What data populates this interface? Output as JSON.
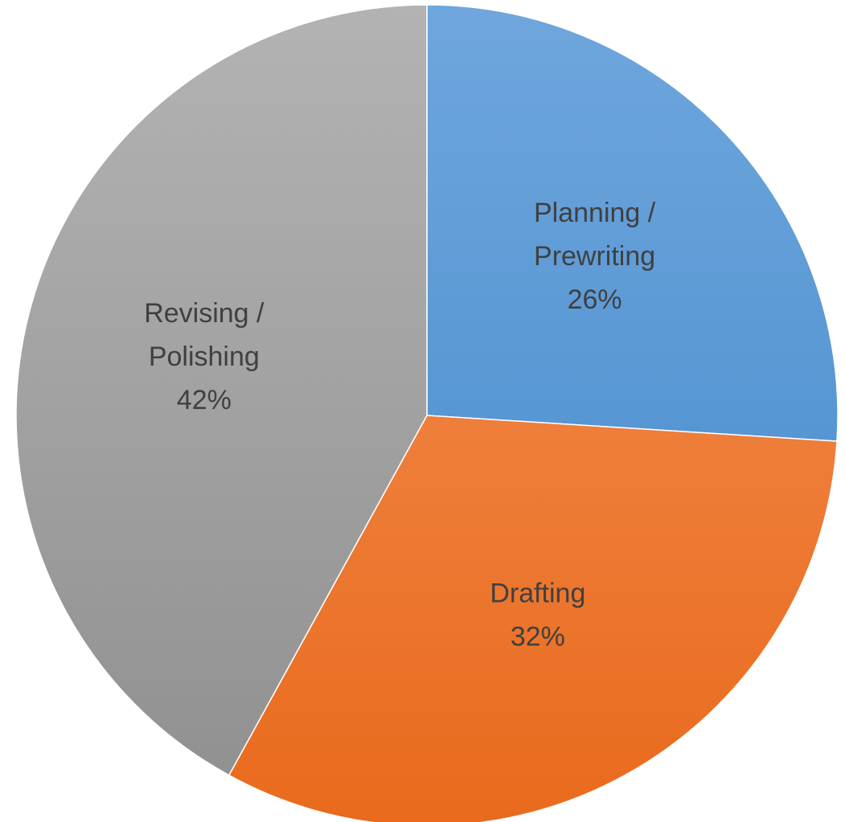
{
  "chart_data": {
    "type": "pie",
    "title": "",
    "start_angle_deg": 0,
    "direction": "clockwise",
    "slices": [
      {
        "label_lines": [
          "Planning /",
          "Prewriting"
        ],
        "percent_label": "26%",
        "value": 26,
        "color_light": "#6fa6dd",
        "color_dark": "#3f88c9"
      },
      {
        "label_lines": [
          "Drafting"
        ],
        "percent_label": "32%",
        "value": 32,
        "color_light": "#f4935a",
        "color_dark": "#e96a1c"
      },
      {
        "label_lines": [
          "Revising /",
          "Polishing"
        ],
        "percent_label": "42%",
        "value": 42,
        "color_light": "#b3b3b3",
        "color_dark": "#8f8f8f"
      }
    ]
  }
}
